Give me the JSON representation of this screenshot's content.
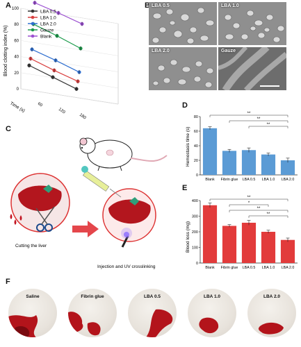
{
  "panels": {
    "A": "A",
    "B": "B",
    "C": "C",
    "D": "D",
    "E": "E",
    "F": "F"
  },
  "colors": {
    "lba05": "#333333",
    "lba10": "#d94040",
    "lba20": "#2f6fd0",
    "gauze": "#1a9a4a",
    "blank": "#9b4fd1",
    "barD": "#5b9bd5",
    "barE": "#e23b3b",
    "tissue": "#b3141b"
  },
  "chart_data": [
    {
      "type": "line",
      "panel": "A",
      "ylabel": "Blood clotting index (%)",
      "xlabel": "Time (s)",
      "x": [
        60,
        120,
        180
      ],
      "yticks": [
        0,
        20,
        40,
        60,
        80,
        100
      ],
      "ylim": [
        0,
        100
      ],
      "series": [
        {
          "name": "LBA 0.5",
          "values": [
            36,
            30,
            24
          ]
        },
        {
          "name": "LBA 1.0",
          "values": [
            41,
            35,
            30
          ]
        },
        {
          "name": "LBA 2.0",
          "values": [
            49,
            44,
            38
          ]
        },
        {
          "name": "Gauze",
          "values": [
            77,
            71,
            64
          ]
        },
        {
          "name": "Blank",
          "values": [
            100,
            96,
            91
          ]
        }
      ]
    },
    {
      "type": "bar",
      "panel": "D",
      "ylabel": "Hemostasis time (s)",
      "categories": [
        "Blank",
        "Fibrin glue",
        "LBA 0.5",
        "LBA 1.0",
        "LBA 2.0"
      ],
      "values": [
        64,
        33,
        34,
        28,
        20
      ],
      "errors": [
        2,
        2,
        3,
        2,
        3
      ],
      "ylim": [
        0,
        80
      ],
      "yticks": [
        0,
        20,
        40,
        60,
        80
      ],
      "significance": [
        {
          "from": 0,
          "to": 4,
          "label": "**"
        },
        {
          "from": 1,
          "to": 4,
          "label": "**"
        },
        {
          "from": 2,
          "to": 4,
          "label": "**"
        }
      ]
    },
    {
      "type": "bar",
      "panel": "E",
      "ylabel": "Blood loss (mg)",
      "categories": [
        "Blank",
        "Fibrin glue",
        "LBA 0.5",
        "LBA 1.0",
        "LBA 2.0"
      ],
      "values": [
        370,
        238,
        258,
        200,
        148
      ],
      "errors": [
        15,
        8,
        15,
        10,
        12
      ],
      "ylim": [
        0,
        400
      ],
      "yticks": [
        0,
        100,
        200,
        300,
        400
      ],
      "significance": [
        {
          "from": 0,
          "to": 4,
          "label": "**"
        },
        {
          "from": 1,
          "to": 3,
          "label": "*"
        },
        {
          "from": 1,
          "to": 4,
          "label": "**"
        },
        {
          "from": 2,
          "to": 4,
          "label": "**"
        }
      ]
    }
  ],
  "sem": {
    "labels": [
      "LBA 0.5",
      "LBA 1.0",
      "LBA 2.0",
      "Gauze"
    ]
  },
  "panelC": {
    "cut_label": "Cutting the liver",
    "inject_label": "Injection and UV crosslinking"
  },
  "panelF": {
    "labels": [
      "Saline",
      "Fibrin glue",
      "LBA 0.5",
      "LBA 1.0",
      "LBA 2.0"
    ]
  }
}
